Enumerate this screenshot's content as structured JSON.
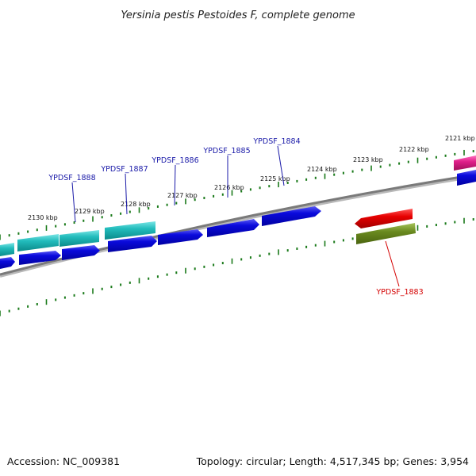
{
  "title": "Yersinia pestis Pestoides F, complete genome",
  "footer": {
    "accession": "Accession: NC_009381",
    "summary": "Topology: circular; Length: 4,517,345 bp; Genes: 3,954"
  },
  "kbp_labels": [
    "2130 kbp",
    "2129 kbp",
    "2128 kbp",
    "2127 kbp",
    "2126 kbp",
    "2125 kbp",
    "2124 kbp",
    "2123 kbp",
    "2122 kbp",
    "2121 kbp"
  ],
  "gene_labels": [
    {
      "text": "YPDSF_1888",
      "color": "#1a1aa8"
    },
    {
      "text": "YPDSF_1887",
      "color": "#1a1aa8"
    },
    {
      "text": "YPDSF_1886",
      "color": "#1a1aa8"
    },
    {
      "text": "YPDSF_1885",
      "color": "#1a1aa8"
    },
    {
      "text": "YPDSF_1884",
      "color": "#1a1aa8"
    },
    {
      "text": "YPDSF_1883",
      "color": "#d40000"
    }
  ],
  "colors": {
    "backbone": "#8a8a8a",
    "ticks": "#1a7a1a",
    "forward_gene": "#0a0adc",
    "forward_gene_top": "#4a4af0",
    "reverse_gene": "#1aa8a8",
    "reverse_gene_top": "#6adcdc",
    "red_gene": "#e60000",
    "olive_gene": "#6a8a20",
    "magenta_gene": "#e0208a"
  }
}
